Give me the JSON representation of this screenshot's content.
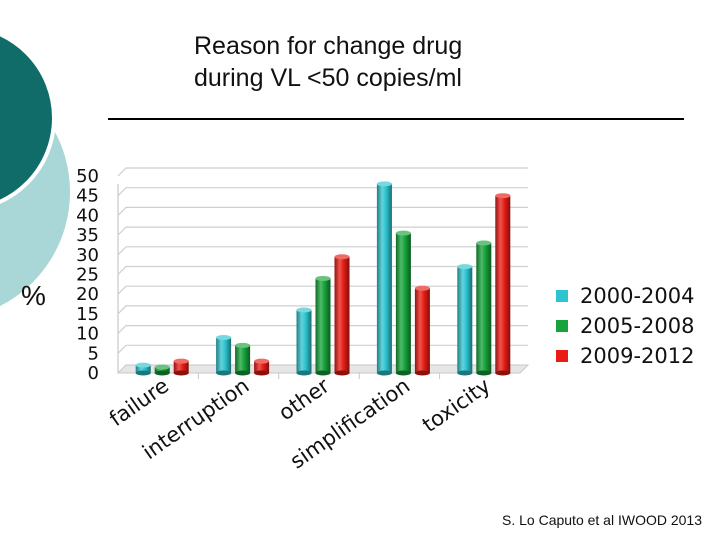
{
  "slide": {
    "title_line1": "Reason for change drug",
    "title_line2": "during VL <50 copies/ml",
    "citation": "S. Lo Caputo et al IWOOD 2013"
  },
  "theme": {
    "circle_dark": "#0f6c68",
    "circle_light": "#a9d6d6"
  },
  "chart_data": {
    "type": "bar",
    "title": "Reason for change drug during VL <50 copies/ml",
    "ylabel": "%",
    "xlabel": "",
    "categories": [
      "failure",
      "interruption",
      "other",
      "simplification",
      "toxicity"
    ],
    "series": [
      {
        "name": "2000-2004",
        "color": "#2ec4cf",
        "values": [
          2,
          9,
          16,
          48,
          27
        ]
      },
      {
        "name": "2005-2008",
        "color": "#16a33a",
        "values": [
          1.5,
          7,
          24,
          35.5,
          33
        ]
      },
      {
        "name": "2009-2012",
        "color": "#e81c14",
        "values": [
          3,
          3,
          29.5,
          21.5,
          45
        ]
      }
    ],
    "ylim": [
      0,
      50
    ],
    "yticks": [
      "0",
      "5",
      "10",
      "15",
      "20",
      "25",
      "30",
      "35",
      "40",
      "45",
      "50"
    ],
    "grid": true,
    "legend_position": "right",
    "style": "3d-cylinder"
  }
}
